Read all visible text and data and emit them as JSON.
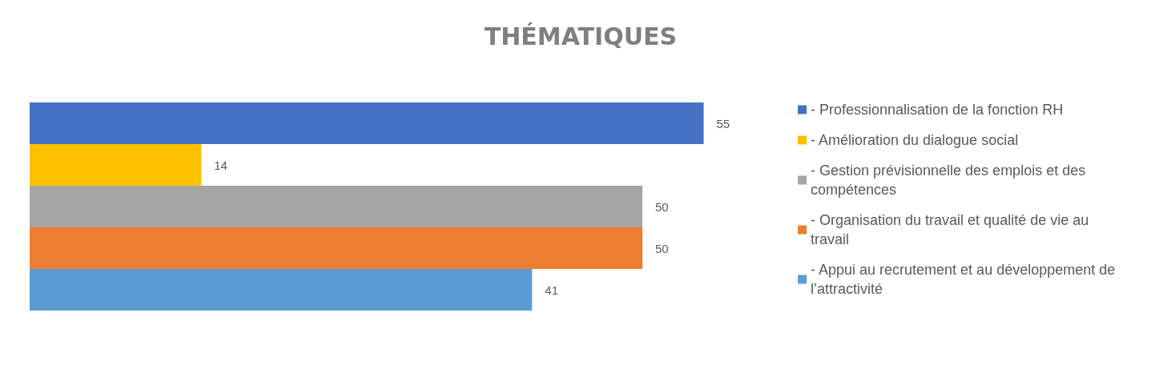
{
  "chart_data": {
    "type": "bar",
    "orientation": "horizontal",
    "stacked": true,
    "title": "THÉMATIQUES",
    "categories": [
      null,
      null,
      null,
      null,
      null
    ],
    "series": [
      {
        "name": "- Professionnalisation de la fonction RH",
        "color": "#4472c4",
        "values": [
          55,
          null,
          null,
          null,
          null
        ]
      },
      {
        "name": "- Amélioration du dialogue social",
        "color": "#ffc000",
        "values": [
          null,
          14,
          null,
          null,
          null
        ]
      },
      {
        "name": "- Gestion prévisionnelle des emplois et des compétences",
        "color": "#a5a5a5",
        "values": [
          null,
          null,
          50,
          null,
          null
        ]
      },
      {
        "name": "- Organisation du travail et qualité de vie au travail",
        "color": "#ed7d31",
        "values": [
          null,
          null,
          null,
          50,
          null
        ]
      },
      {
        "name": "- Appui au recrutement et au développement de l’attractivité",
        "color": "#5b9bd5",
        "values": [
          null,
          null,
          null,
          null,
          41
        ]
      }
    ],
    "data_labels": true,
    "legend": "right",
    "grid": false,
    "tick_labels": false
  }
}
